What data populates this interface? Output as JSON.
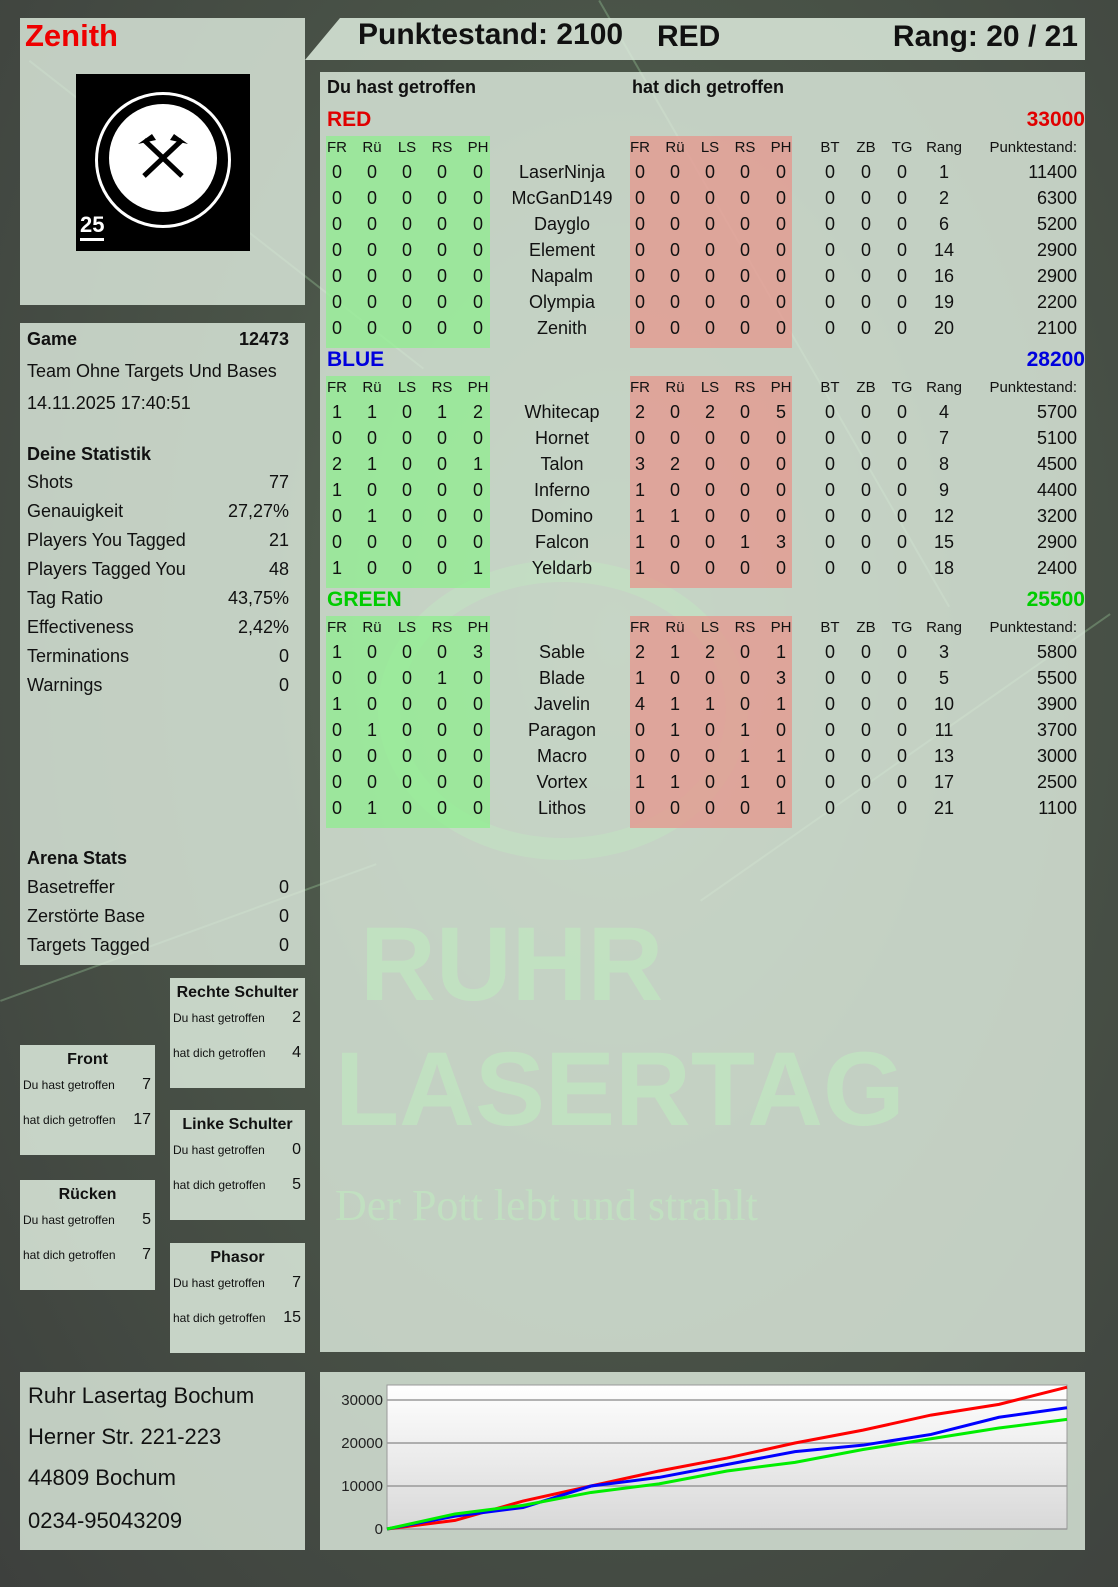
{
  "player": {
    "name": "Zenith",
    "logo_text": "RUHR LASERTAG",
    "logo_badge": "25"
  },
  "header": {
    "score": "Punktestand: 2100",
    "team": "RED",
    "rank": "Rang: 20 / 21"
  },
  "table_headings": {
    "you_hit": "Du hast getroffen",
    "hit_you": "hat dich getroffen"
  },
  "columns": {
    "hit": [
      "FR",
      "Rü",
      "LS",
      "RS",
      "PH"
    ],
    "extra": [
      "BT",
      "ZB",
      "TG",
      "Rang",
      "Punktestand:"
    ]
  },
  "teams": [
    {
      "name": "RED",
      "score": "33000",
      "color": "#e00000",
      "players": [
        {
          "name": "LaserNinja",
          "you_hit": [
            0,
            0,
            0,
            0,
            0
          ],
          "hit_you": [
            0,
            0,
            0,
            0,
            0
          ],
          "bt": 0,
          "zb": 0,
          "tg": 0,
          "rank": 1,
          "score": 11400
        },
        {
          "name": "McGanD149",
          "you_hit": [
            0,
            0,
            0,
            0,
            0
          ],
          "hit_you": [
            0,
            0,
            0,
            0,
            0
          ],
          "bt": 0,
          "zb": 0,
          "tg": 0,
          "rank": 2,
          "score": 6300
        },
        {
          "name": "Dayglo",
          "you_hit": [
            0,
            0,
            0,
            0,
            0
          ],
          "hit_you": [
            0,
            0,
            0,
            0,
            0
          ],
          "bt": 0,
          "zb": 0,
          "tg": 0,
          "rank": 6,
          "score": 5200
        },
        {
          "name": "Element",
          "you_hit": [
            0,
            0,
            0,
            0,
            0
          ],
          "hit_you": [
            0,
            0,
            0,
            0,
            0
          ],
          "bt": 0,
          "zb": 0,
          "tg": 0,
          "rank": 14,
          "score": 2900
        },
        {
          "name": "Napalm",
          "you_hit": [
            0,
            0,
            0,
            0,
            0
          ],
          "hit_you": [
            0,
            0,
            0,
            0,
            0
          ],
          "bt": 0,
          "zb": 0,
          "tg": 0,
          "rank": 16,
          "score": 2900
        },
        {
          "name": "Olympia",
          "you_hit": [
            0,
            0,
            0,
            0,
            0
          ],
          "hit_you": [
            0,
            0,
            0,
            0,
            0
          ],
          "bt": 0,
          "zb": 0,
          "tg": 0,
          "rank": 19,
          "score": 2200
        },
        {
          "name": "Zenith",
          "you_hit": [
            0,
            0,
            0,
            0,
            0
          ],
          "hit_you": [
            0,
            0,
            0,
            0,
            0
          ],
          "bt": 0,
          "zb": 0,
          "tg": 0,
          "rank": 20,
          "score": 2100
        }
      ]
    },
    {
      "name": "BLUE",
      "score": "28200",
      "color": "#0000dd",
      "players": [
        {
          "name": "Whitecap",
          "you_hit": [
            1,
            1,
            0,
            1,
            2
          ],
          "hit_you": [
            2,
            0,
            2,
            0,
            5
          ],
          "bt": 0,
          "zb": 0,
          "tg": 0,
          "rank": 4,
          "score": 5700
        },
        {
          "name": "Hornet",
          "you_hit": [
            0,
            0,
            0,
            0,
            0
          ],
          "hit_you": [
            0,
            0,
            0,
            0,
            0
          ],
          "bt": 0,
          "zb": 0,
          "tg": 0,
          "rank": 7,
          "score": 5100
        },
        {
          "name": "Talon",
          "you_hit": [
            2,
            1,
            0,
            0,
            1
          ],
          "hit_you": [
            3,
            2,
            0,
            0,
            0
          ],
          "bt": 0,
          "zb": 0,
          "tg": 0,
          "rank": 8,
          "score": 4500
        },
        {
          "name": "Inferno",
          "you_hit": [
            1,
            0,
            0,
            0,
            0
          ],
          "hit_you": [
            1,
            0,
            0,
            0,
            0
          ],
          "bt": 0,
          "zb": 0,
          "tg": 0,
          "rank": 9,
          "score": 4400
        },
        {
          "name": "Domino",
          "you_hit": [
            0,
            1,
            0,
            0,
            0
          ],
          "hit_you": [
            1,
            1,
            0,
            0,
            0
          ],
          "bt": 0,
          "zb": 0,
          "tg": 0,
          "rank": 12,
          "score": 3200
        },
        {
          "name": "Falcon",
          "you_hit": [
            0,
            0,
            0,
            0,
            0
          ],
          "hit_you": [
            1,
            0,
            0,
            1,
            3
          ],
          "bt": 0,
          "zb": 0,
          "tg": 0,
          "rank": 15,
          "score": 2900
        },
        {
          "name": "Yeldarb",
          "you_hit": [
            1,
            0,
            0,
            0,
            1
          ],
          "hit_you": [
            1,
            0,
            0,
            0,
            0
          ],
          "bt": 0,
          "zb": 0,
          "tg": 0,
          "rank": 18,
          "score": 2400
        }
      ]
    },
    {
      "name": "GREEN",
      "score": "25500",
      "color": "#00cc00",
      "players": [
        {
          "name": "Sable",
          "you_hit": [
            1,
            0,
            0,
            0,
            3
          ],
          "hit_you": [
            2,
            1,
            2,
            0,
            1
          ],
          "bt": 0,
          "zb": 0,
          "tg": 0,
          "rank": 3,
          "score": 5800
        },
        {
          "name": "Blade",
          "you_hit": [
            0,
            0,
            0,
            1,
            0
          ],
          "hit_you": [
            1,
            0,
            0,
            0,
            3
          ],
          "bt": 0,
          "zb": 0,
          "tg": 0,
          "rank": 5,
          "score": 5500
        },
        {
          "name": "Javelin",
          "you_hit": [
            1,
            0,
            0,
            0,
            0
          ],
          "hit_you": [
            4,
            1,
            1,
            0,
            1
          ],
          "bt": 0,
          "zb": 0,
          "tg": 0,
          "rank": 10,
          "score": 3900
        },
        {
          "name": "Paragon",
          "you_hit": [
            0,
            1,
            0,
            0,
            0
          ],
          "hit_you": [
            0,
            1,
            0,
            1,
            0
          ],
          "bt": 0,
          "zb": 0,
          "tg": 0,
          "rank": 11,
          "score": 3700
        },
        {
          "name": "Macro",
          "you_hit": [
            0,
            0,
            0,
            0,
            0
          ],
          "hit_you": [
            0,
            0,
            0,
            1,
            1
          ],
          "bt": 0,
          "zb": 0,
          "tg": 0,
          "rank": 13,
          "score": 3000
        },
        {
          "name": "Vortex",
          "you_hit": [
            0,
            0,
            0,
            0,
            0
          ],
          "hit_you": [
            1,
            1,
            0,
            1,
            0
          ],
          "bt": 0,
          "zb": 0,
          "tg": 0,
          "rank": 17,
          "score": 2500
        },
        {
          "name": "Lithos",
          "you_hit": [
            0,
            1,
            0,
            0,
            0
          ],
          "hit_you": [
            0,
            0,
            0,
            0,
            1
          ],
          "bt": 0,
          "zb": 0,
          "tg": 0,
          "rank": 21,
          "score": 1100
        }
      ]
    }
  ],
  "game": {
    "label": "Game",
    "id": "12473",
    "mode": "Team Ohne Targets Und Bases",
    "datetime": "14.11.2025 17:40:51"
  },
  "stats": {
    "title": "Deine Statistik",
    "items": [
      {
        "label": "Shots",
        "value": "77"
      },
      {
        "label": "Genauigkeit",
        "value": "27,27%"
      },
      {
        "label": "Players You Tagged",
        "value": "21"
      },
      {
        "label": "Players Tagged You",
        "value": "48"
      },
      {
        "label": "Tag Ratio",
        "value": "43,75%"
      },
      {
        "label": "Effectiveness",
        "value": "2,42%"
      },
      {
        "label": "Terminations",
        "value": "0"
      },
      {
        "label": "Warnings",
        "value": "0"
      }
    ]
  },
  "arena": {
    "title": "Arena Stats",
    "items": [
      {
        "label": "Basetreffer",
        "value": "0"
      },
      {
        "label": "Zerstörte Base",
        "value": "0"
      },
      {
        "label": "Targets Tagged",
        "value": "0"
      }
    ]
  },
  "hit_zones": [
    {
      "title": "Front",
      "you_hit_label": "Du hast getroffen",
      "you_hit": "7",
      "hit_you_label": "hat dich getroffen",
      "hit_you": "17"
    },
    {
      "title": "Rücken",
      "you_hit_label": "Du hast getroffen",
      "you_hit": "5",
      "hit_you_label": "hat dich getroffen",
      "hit_you": "7"
    },
    {
      "title": "Rechte Schulter",
      "you_hit_label": "Du hast getroffen",
      "you_hit": "2",
      "hit_you_label": "hat dich getroffen",
      "hit_you": "4"
    },
    {
      "title": "Linke Schulter",
      "you_hit_label": "Du hast getroffen",
      "you_hit": "0",
      "hit_you_label": "hat dich getroffen",
      "hit_you": "5"
    },
    {
      "title": "Phasor",
      "you_hit_label": "Du hast getroffen",
      "you_hit": "7",
      "hit_you_label": "hat dich getroffen",
      "hit_you": "15"
    }
  ],
  "address": {
    "line1": "Ruhr Lasertag Bochum",
    "line2": "Herner Str. 221-223",
    "line3": "44809 Bochum",
    "phone": "0234-95043209"
  },
  "watermark": {
    "line1": "RUHR",
    "line2": "LASERTAG",
    "slogan": "Der Pott lebt und strahlt"
  },
  "chart_data": {
    "type": "line",
    "title": "",
    "xlabel": "",
    "ylabel": "",
    "ylim": [
      0,
      33500
    ],
    "yticks": [
      "0",
      "10000",
      "20000",
      "30000"
    ],
    "grid": true,
    "x": [
      0,
      1,
      2,
      3,
      4,
      5,
      6,
      7,
      8,
      9,
      10
    ],
    "series": [
      {
        "color": "#ff0000",
        "values": [
          0,
          2000,
          6500,
          10000,
          13500,
          16500,
          20000,
          23000,
          26500,
          29000,
          33000
        ]
      },
      {
        "color": "#0000ff",
        "values": [
          0,
          3000,
          5000,
          10000,
          12000,
          15000,
          18000,
          19500,
          22000,
          26000,
          28200
        ]
      },
      {
        "color": "#00ee00",
        "values": [
          0,
          3500,
          5500,
          8500,
          10500,
          13500,
          15500,
          18500,
          21000,
          23500,
          25500
        ]
      }
    ]
  }
}
